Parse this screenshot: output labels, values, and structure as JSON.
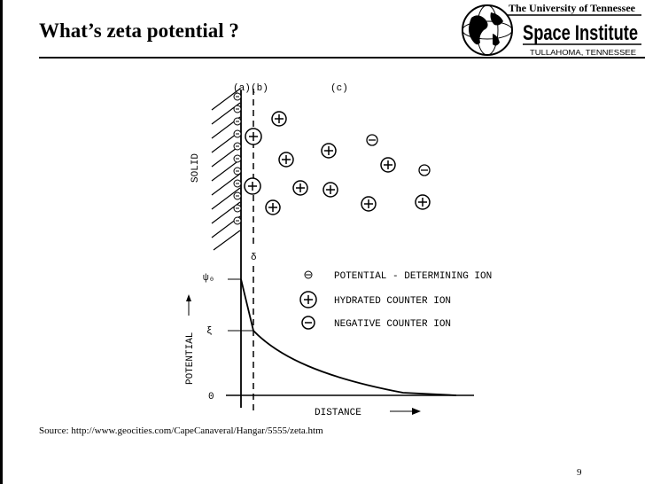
{
  "title": "What’s zeta potential ?",
  "logo": {
    "line1": "The University of Tennessee",
    "line2": "Space Institute",
    "line3": "TULLAHOMA, TENNESSEE"
  },
  "figure": {
    "labels": {
      "a": "(a)",
      "b": "(b)",
      "c": "(c)",
      "solid": "SOLID",
      "delta": "δ",
      "psi0": "ψ₀",
      "zeta": "ξ",
      "zero": "0",
      "potential_axis": "POTENTIAL",
      "distance_axis": "DISTANCE"
    },
    "legend": [
      {
        "symbol": "minus-small",
        "text": "POTENTIAL - DETERMINING ION"
      },
      {
        "symbol": "plus-circle",
        "text": "HYDRATED COUNTER ION"
      },
      {
        "symbol": "minus-circle",
        "text": "NEGATIVE COUNTER ION"
      }
    ]
  },
  "source": "Source: http://www.geocities.com/CapeCanaveral/Hangar/5555/zeta.htm",
  "page_number": "9"
}
